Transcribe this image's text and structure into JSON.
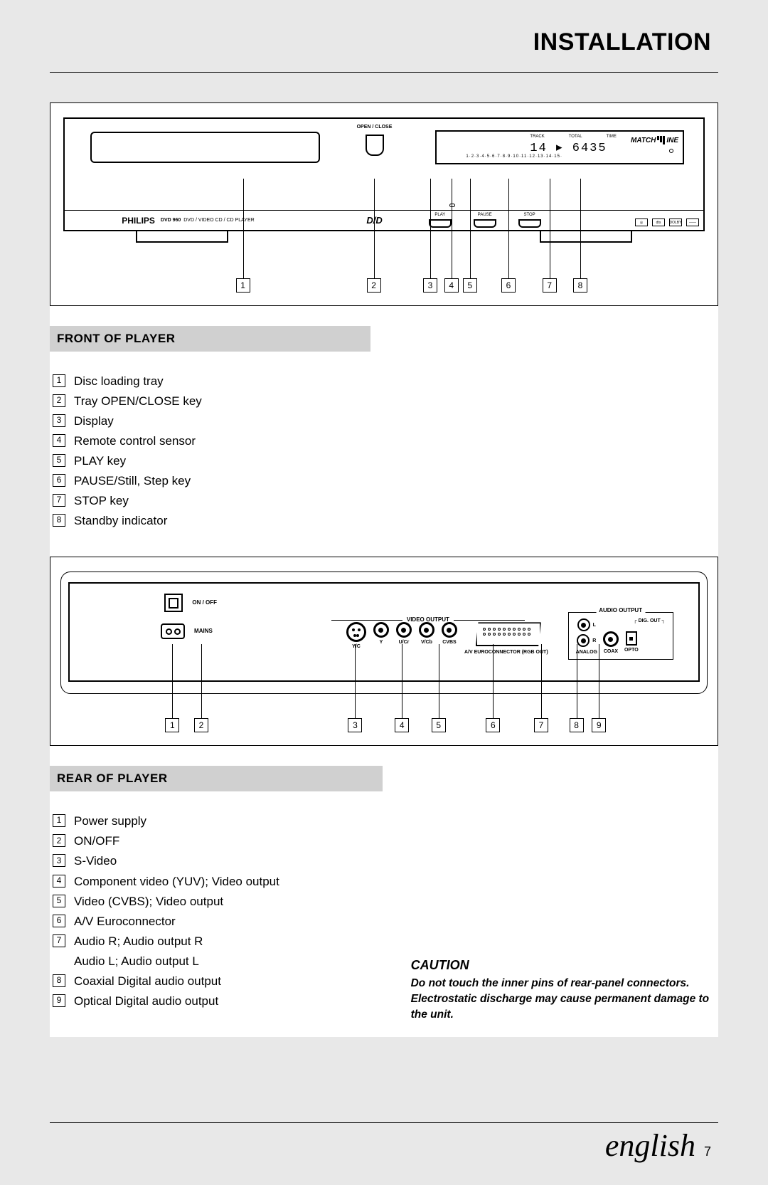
{
  "page_title": "INSTALLATION",
  "front": {
    "heading": "FRONT OF PLAYER",
    "brand": "PHILIPS",
    "model": "DVD 960",
    "model_desc": "DVD / VIDEO CD / CD PLAYER",
    "open_close": "OPEN / CLOSE",
    "dvd_logo": "D/D",
    "display_hdrs": {
      "track": "TRACK",
      "total": "TOTAL",
      "time": "TIME"
    },
    "display_digits": "14 ▸ 6435",
    "matchline_a": "MATCH",
    "matchline_b": "INE",
    "ctrl": {
      "play": "PLAY",
      "pause": "PAUSE",
      "stop": "STOP"
    },
    "logos": [
      "◎",
      "dts",
      "DOLBY",
      "——"
    ],
    "callouts": [
      {
        "n": "1",
        "x": 28
      },
      {
        "n": "2",
        "x": 48.4
      },
      {
        "n": "3",
        "x": 57.2
      },
      {
        "n": "4",
        "x": 60.5
      },
      {
        "n": "5",
        "x": 63.4
      },
      {
        "n": "6",
        "x": 69.4
      },
      {
        "n": "7",
        "x": 75.8
      },
      {
        "n": "8",
        "x": 80.6
      }
    ],
    "legend": [
      "Disc loading tray",
      "Tray OPEN/CLOSE key",
      "Display",
      "Remote control sensor",
      "PLAY key",
      "PAUSE/Still, Step key",
      "STOP key",
      "Standby indicator"
    ]
  },
  "rear": {
    "heading": "REAR OF PLAYER",
    "onoff": "ON / OFF",
    "mains": "MAINS",
    "video_title": "VIDEO OUTPUT",
    "jacks": {
      "yc": "Y/C",
      "y": "Y",
      "ucr": "U/Cr",
      "vcb": "V/Cb",
      "cvbs": "CVBS",
      "scart": "A/V EUROCONNECTOR (RGB OUT)"
    },
    "audio_title": "AUDIO OUTPUT",
    "audio": {
      "l": "L",
      "r": "R",
      "analog": "ANALOG",
      "digout": "DIG. OUT",
      "coax": "COAX",
      "opto": "OPTO"
    },
    "callouts": [
      {
        "n": "1",
        "x": 17
      },
      {
        "n": "2",
        "x": 21.5
      },
      {
        "n": "3",
        "x": 45.5
      },
      {
        "n": "4",
        "x": 52.8
      },
      {
        "n": "5",
        "x": 58.5
      },
      {
        "n": "6",
        "x": 67
      },
      {
        "n": "7",
        "x": 74.5
      },
      {
        "n": "8",
        "x": 80
      },
      {
        "n": "9",
        "x": 83.5
      }
    ],
    "legend": [
      "Power supply",
      "ON/OFF",
      "S-Video",
      "Component video (YUV); Video output",
      "Video (CVBS); Video output",
      "A/V Euroconnector",
      "Audio R; Audio output R\nAudio L; Audio output L",
      "Coaxial Digital audio output",
      "Optical Digital audio output"
    ]
  },
  "caution": {
    "title": "CAUTION",
    "body": "Do not touch the inner pins of rear-panel connectors. Electrostatic discharge may cause permanent damage to the unit."
  },
  "footer": {
    "language": "english",
    "page": "7"
  }
}
